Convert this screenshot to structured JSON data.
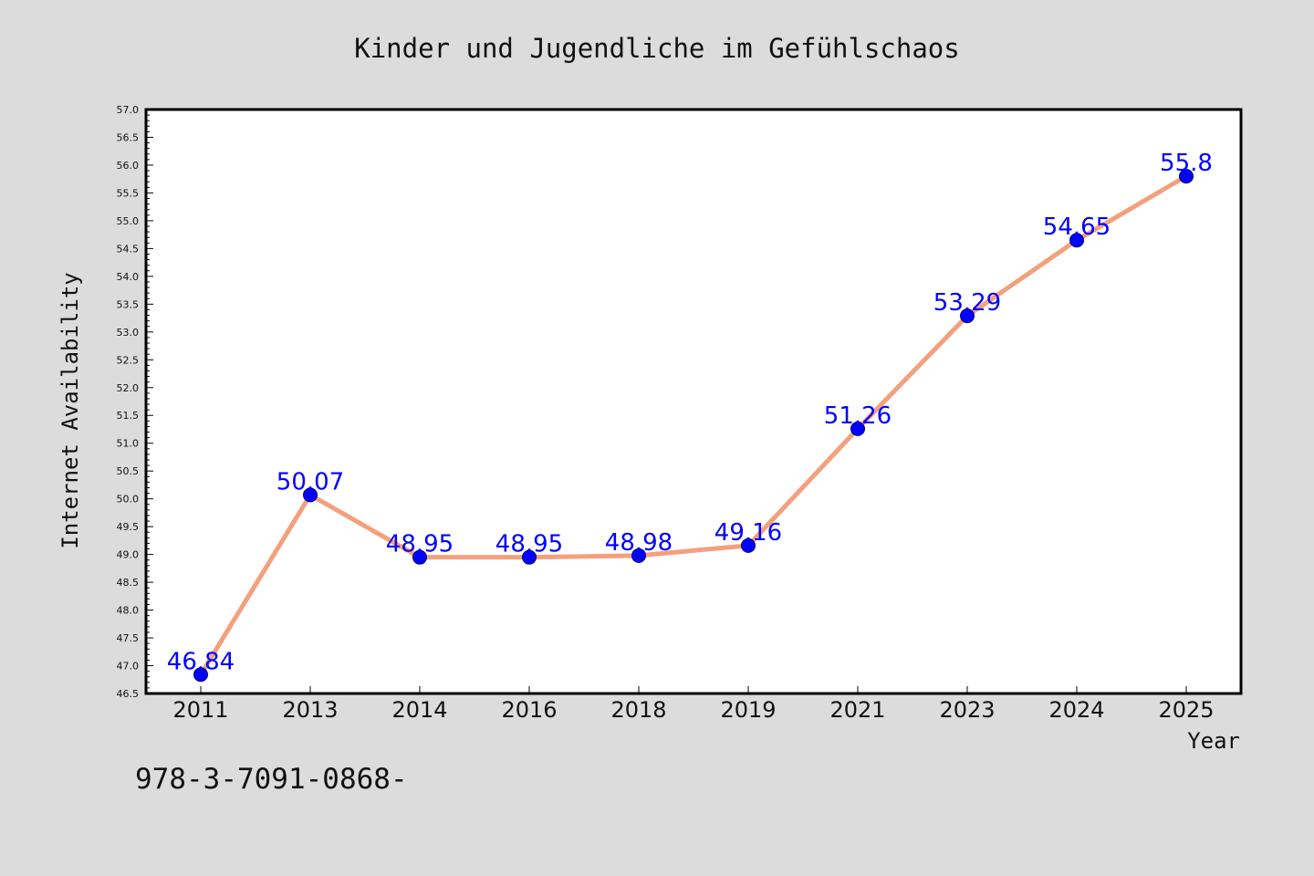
{
  "colors": {
    "background": "#dcdcdc",
    "plot_background": "#ffffff",
    "line": "#f4a07c",
    "marker": "#0000ff",
    "data_label": "#0000ff",
    "axis": "#000000"
  },
  "footer": {
    "text": "978-3-7091-0868-"
  },
  "chart_data": {
    "type": "line",
    "title": "Kinder und Jugendliche im Gefühlschaos",
    "xlabel": "Year",
    "ylabel": "Internet Availability",
    "categories": [
      "2011",
      "2013",
      "2014",
      "2016",
      "2018",
      "2019",
      "2021",
      "2023",
      "2024",
      "2025"
    ],
    "values": [
      46.84,
      50.07,
      48.95,
      48.95,
      48.98,
      49.16,
      51.26,
      53.29,
      54.65,
      55.8
    ],
    "data_labels": [
      "46.84",
      "50.07",
      "48.95",
      "48.95",
      "48.98",
      "49.16",
      "51.26",
      "53.29",
      "54.65",
      "55.8"
    ],
    "ylim": [
      46.5,
      57.0
    ],
    "yticks": [
      "46.5",
      "47.0",
      "47.5",
      "48.0",
      "48.5",
      "49.0",
      "49.5",
      "50.0",
      "50.5",
      "51.0",
      "51.5",
      "52.0",
      "52.5",
      "53.0",
      "53.5",
      "54.0",
      "54.5",
      "55.0",
      "55.5",
      "56.0",
      "56.5",
      "57.0"
    ],
    "grid": false,
    "legend": "none"
  }
}
